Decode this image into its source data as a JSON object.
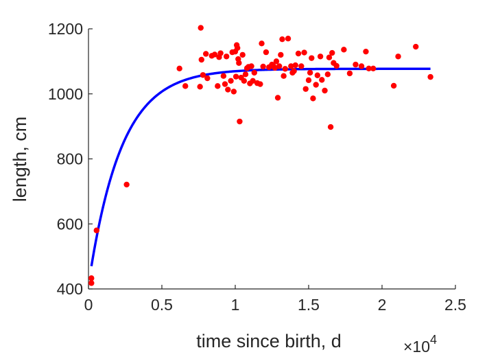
{
  "chart_data": {
    "type": "scatter",
    "xlabel": "time since birth, d",
    "ylabel": "length, cm",
    "x_multiplier_label": "×10",
    "x_multiplier_exponent": "4",
    "xlim": [
      0,
      25000
    ],
    "ylim": [
      400,
      1200
    ],
    "x_ticks": [
      0,
      5000,
      10000,
      15000,
      20000,
      25000
    ],
    "x_tick_labels": [
      "0",
      "0.5",
      "1",
      "1.5",
      "2",
      "2.5"
    ],
    "y_ticks": [
      400,
      600,
      800,
      1000,
      1200
    ],
    "y_tick_labels": [
      "400",
      "600",
      "800",
      "1000",
      "1200"
    ],
    "grid": false,
    "colors": {
      "points": "#ff0000",
      "fit": "#0000ff",
      "axes": "#262626"
    },
    "fit": {
      "model": "exponential-saturation",
      "Linf": 1077,
      "L0": 470,
      "k": 0.00045,
      "x_range": [
        200,
        23300
      ]
    },
    "points": [
      [
        200,
        433
      ],
      [
        200,
        418
      ],
      [
        550,
        580
      ],
      [
        2600,
        721
      ],
      [
        6200,
        1078
      ],
      [
        6600,
        1024
      ],
      [
        7600,
        1022
      ],
      [
        7650,
        1203
      ],
      [
        7700,
        1105
      ],
      [
        7800,
        1058
      ],
      [
        8000,
        1123
      ],
      [
        8100,
        1048
      ],
      [
        8400,
        1117
      ],
      [
        8600,
        1121
      ],
      [
        8800,
        1024
      ],
      [
        8900,
        1113
      ],
      [
        9000,
        1125
      ],
      [
        9200,
        1055
      ],
      [
        9300,
        1030
      ],
      [
        9400,
        1115
      ],
      [
        9500,
        1013
      ],
      [
        9700,
        1040
      ],
      [
        9800,
        1128
      ],
      [
        9900,
        1007
      ],
      [
        10000,
        1130
      ],
      [
        10050,
        1053
      ],
      [
        10100,
        1150
      ],
      [
        10150,
        1141
      ],
      [
        10200,
        1107
      ],
      [
        10250,
        1095
      ],
      [
        10300,
        915
      ],
      [
        10400,
        1050
      ],
      [
        10500,
        1120
      ],
      [
        10600,
        1040
      ],
      [
        10700,
        1060
      ],
      [
        10800,
        1079
      ],
      [
        10900,
        1083
      ],
      [
        11000,
        1032
      ],
      [
        11100,
        1085
      ],
      [
        11200,
        1040
      ],
      [
        11300,
        1065
      ],
      [
        11500,
        1033
      ],
      [
        11700,
        1030
      ],
      [
        11800,
        1155
      ],
      [
        11900,
        1084
      ],
      [
        12100,
        1128
      ],
      [
        12300,
        1082
      ],
      [
        12500,
        1090
      ],
      [
        12600,
        1085
      ],
      [
        12700,
        1080
      ],
      [
        12800,
        1100
      ],
      [
        12900,
        988
      ],
      [
        13000,
        1085
      ],
      [
        13100,
        1120
      ],
      [
        13200,
        1168
      ],
      [
        13300,
        1055
      ],
      [
        13400,
        1077
      ],
      [
        13600,
        1170
      ],
      [
        13800,
        1085
      ],
      [
        13900,
        1065
      ],
      [
        14000,
        1070
      ],
      [
        14100,
        1088
      ],
      [
        14300,
        1124
      ],
      [
        14500,
        1085
      ],
      [
        14700,
        1127
      ],
      [
        14800,
        1015
      ],
      [
        15000,
        1042
      ],
      [
        15100,
        1065
      ],
      [
        15200,
        1110
      ],
      [
        15300,
        986
      ],
      [
        15500,
        1028
      ],
      [
        15600,
        1057
      ],
      [
        15800,
        1115
      ],
      [
        15900,
        1043
      ],
      [
        16100,
        1010
      ],
      [
        16300,
        1060
      ],
      [
        16400,
        1112
      ],
      [
        16500,
        898
      ],
      [
        16600,
        1126
      ],
      [
        16700,
        1095
      ],
      [
        16900,
        1086
      ],
      [
        17400,
        1136
      ],
      [
        17800,
        1063
      ],
      [
        18200,
        1090
      ],
      [
        18600,
        1085
      ],
      [
        18900,
        1130
      ],
      [
        19100,
        1078
      ],
      [
        19400,
        1078
      ],
      [
        20800,
        1025
      ],
      [
        21100,
        1115
      ],
      [
        22300,
        1145
      ],
      [
        23300,
        1052
      ]
    ]
  }
}
